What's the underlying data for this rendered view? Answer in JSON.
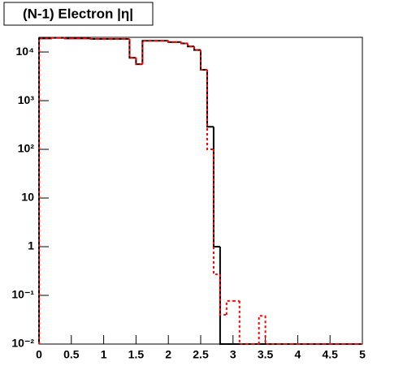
{
  "chart_data": {
    "type": "histogram",
    "title": "(N-1) Electron |η|",
    "bins": [
      0,
      0.1,
      0.2,
      0.3,
      0.4,
      0.5,
      0.6,
      0.7,
      0.8,
      0.9,
      1,
      1.1,
      1.2,
      1.3,
      1.4,
      1.5,
      1.6,
      1.7,
      1.8,
      1.9,
      2,
      2.1,
      2.2,
      2.3,
      2.4,
      2.5,
      2.6,
      2.7,
      2.8,
      2.9,
      3,
      3.1,
      3.2,
      3.3,
      3.4,
      3.5,
      3.6,
      3.7,
      3.8,
      3.9,
      4,
      4.1,
      4.2,
      4.3,
      4.4,
      4.5,
      4.6,
      4.7,
      4.8,
      4.9,
      5
    ],
    "series": [
      {
        "color": "#000000",
        "dashed": false,
        "values": [
          19000,
          19000,
          19500,
          19500,
          19000,
          19000,
          19000,
          19000,
          18500,
          18500,
          18500,
          18500,
          18500,
          18500,
          7600,
          5600,
          17000,
          17000,
          17000,
          17000,
          16000,
          16000,
          15000,
          13000,
          11000,
          4300,
          290,
          1,
          0,
          0,
          0,
          0,
          0,
          0,
          0,
          0,
          0,
          0,
          0,
          0,
          0,
          0,
          0,
          0,
          0,
          0,
          0,
          0,
          0,
          0
        ]
      },
      {
        "color": "#ff0000",
        "dashed": true,
        "values": [
          19000,
          19000,
          19500,
          19500,
          19000,
          19000,
          19000,
          19000,
          18500,
          18500,
          18500,
          18500,
          18500,
          18500,
          7600,
          5600,
          17000,
          17000,
          17000,
          17000,
          16000,
          16000,
          15000,
          13000,
          11000,
          4300,
          100,
          0.27,
          0.04,
          0.077,
          0.077,
          0,
          0,
          0,
          0.038,
          0,
          0,
          0,
          0,
          0,
          0,
          0,
          0,
          0,
          0,
          0,
          0,
          0,
          0,
          0
        ]
      }
    ],
    "xlim": [
      0,
      5
    ],
    "xticks": [
      0,
      0.5,
      1,
      1.5,
      2,
      2.5,
      3,
      3.5,
      4,
      4.5,
      5
    ],
    "ylim": [
      0.01,
      20000
    ],
    "log_y": true,
    "yticks": [
      {
        "value": 0.01,
        "label": "10⁻²"
      },
      {
        "value": 0.1,
        "label": "10⁻¹"
      },
      1,
      10,
      {
        "value": 100,
        "label": "10²"
      },
      {
        "value": 1000,
        "label": "10³"
      },
      {
        "value": 10000,
        "label": "10⁴"
      }
    ]
  }
}
